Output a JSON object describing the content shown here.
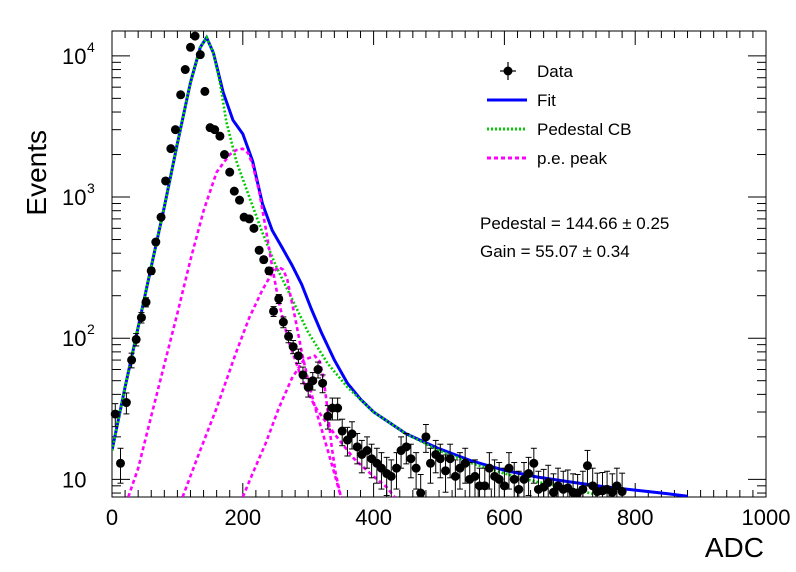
{
  "chart_data": {
    "type": "scatter",
    "xlabel": "ADC",
    "ylabel": "Events",
    "xlim": [
      0,
      1000
    ],
    "ylim": [
      7.5,
      15000
    ],
    "yscale": "log",
    "grid": false,
    "legend_placement": "top-right",
    "x_ticks": [
      "0",
      "200",
      "400",
      "600",
      "800",
      "1000"
    ],
    "y_ticks": [
      {
        "base": "10",
        "exp": "",
        "value": 10
      },
      {
        "base": "10",
        "exp": "2",
        "value": 100
      },
      {
        "base": "10",
        "exp": "3",
        "value": 1000
      },
      {
        "base": "10",
        "exp": "4",
        "value": 10000
      }
    ],
    "legend": [
      {
        "label": "Data",
        "style": "marker",
        "color": "#000000"
      },
      {
        "label": "Fit",
        "style": "solid",
        "color": "#0000ff"
      },
      {
        "label": "Pedestal CB",
        "style": "dotted",
        "color": "#00cc00"
      },
      {
        "label": "p.e. peak",
        "style": "dashed",
        "color": "#ff00ff"
      }
    ],
    "annotations": [
      "Pedestal = 144.66 ± 0.25",
      "Gain = 55.07 ± 0.34"
    ],
    "series": [
      {
        "name": "Data",
        "kind": "points",
        "color": "#000000",
        "points": [
          [
            5,
            29
          ],
          [
            13,
            13
          ],
          [
            22,
            35
          ],
          [
            30,
            70
          ],
          [
            37,
            98
          ],
          [
            45,
            140
          ],
          [
            52,
            180
          ],
          [
            60,
            300
          ],
          [
            67,
            480
          ],
          [
            75,
            720
          ],
          [
            82,
            1300
          ],
          [
            90,
            2200
          ],
          [
            97,
            3000
          ],
          [
            105,
            5300
          ],
          [
            112,
            8000
          ],
          [
            120,
            11500
          ],
          [
            127,
            13800
          ],
          [
            135,
            10200
          ],
          [
            142,
            5600
          ],
          [
            150,
            3100
          ],
          [
            157,
            3000
          ],
          [
            165,
            2700
          ],
          [
            172,
            2000
          ],
          [
            180,
            1500
          ],
          [
            187,
            1100
          ],
          [
            195,
            950
          ],
          [
            202,
            720
          ],
          [
            210,
            700
          ],
          [
            217,
            600
          ],
          [
            225,
            420
          ],
          [
            232,
            360
          ],
          [
            240,
            300
          ],
          [
            247,
            155
          ],
          [
            255,
            190
          ],
          [
            262,
            130
          ],
          [
            270,
            103
          ],
          [
            277,
            87
          ],
          [
            285,
            75
          ],
          [
            292,
            55
          ],
          [
            300,
            45
          ],
          [
            307,
            50
          ],
          [
            315,
            60
          ],
          [
            322,
            48
          ],
          [
            330,
            28
          ],
          [
            337,
            32
          ],
          [
            345,
            32
          ],
          [
            352,
            22
          ],
          [
            360,
            19
          ],
          [
            367,
            21
          ],
          [
            375,
            17
          ],
          [
            382,
            15
          ],
          [
            390,
            16
          ],
          [
            397,
            14
          ],
          [
            405,
            13
          ],
          [
            412,
            12
          ],
          [
            420,
            11
          ],
          [
            427,
            10.5
          ],
          [
            435,
            12
          ],
          [
            442,
            16
          ],
          [
            450,
            17
          ],
          [
            457,
            14
          ],
          [
            465,
            12
          ],
          [
            472,
            8
          ],
          [
            480,
            20
          ],
          [
            487,
            13
          ],
          [
            495,
            15
          ],
          [
            502,
            14
          ],
          [
            510,
            11.5
          ],
          [
            517,
            14
          ],
          [
            525,
            10.5
          ],
          [
            532,
            12
          ],
          [
            540,
            13
          ],
          [
            547,
            10
          ],
          [
            555,
            10.5
          ],
          [
            562,
            9
          ],
          [
            570,
            9
          ],
          [
            577,
            12
          ],
          [
            585,
            10.5
          ],
          [
            592,
            10
          ],
          [
            600,
            9
          ],
          [
            607,
            12
          ],
          [
            615,
            10
          ],
          [
            622,
            8.5
          ],
          [
            630,
            10
          ],
          [
            637,
            11
          ],
          [
            645,
            13
          ],
          [
            652,
            8.5
          ],
          [
            660,
            8.8
          ],
          [
            667,
            9.5
          ],
          [
            675,
            8.1
          ],
          [
            682,
            9
          ],
          [
            690,
            8.5
          ],
          [
            697,
            8.7
          ],
          [
            705,
            8.1
          ],
          [
            712,
            8
          ],
          [
            720,
            8.5
          ],
          [
            727,
            12.5
          ],
          [
            735,
            9
          ],
          [
            742,
            8.2
          ],
          [
            750,
            8.3
          ],
          [
            757,
            8.5
          ],
          [
            765,
            8.1
          ],
          [
            772,
            9
          ],
          [
            780,
            8.2
          ]
        ]
      },
      {
        "name": "Fit",
        "kind": "line",
        "style": "solid",
        "color": "#0000ff",
        "points": [
          [
            0,
            16
          ],
          [
            20,
            45
          ],
          [
            40,
            120
          ],
          [
            60,
            320
          ],
          [
            80,
            850
          ],
          [
            100,
            2400
          ],
          [
            120,
            6500
          ],
          [
            135,
            11500
          ],
          [
            144.66,
            13500
          ],
          [
            155,
            10500
          ],
          [
            170,
            5500
          ],
          [
            185,
            3500
          ],
          [
            200,
            2800
          ],
          [
            215,
            1800
          ],
          [
            230,
            900
          ],
          [
            245,
            580
          ],
          [
            260,
            440
          ],
          [
            275,
            330
          ],
          [
            290,
            240
          ],
          [
            305,
            160
          ],
          [
            320,
            110
          ],
          [
            340,
            70
          ],
          [
            360,
            48
          ],
          [
            380,
            37
          ],
          [
            400,
            30
          ],
          [
            450,
            21
          ],
          [
            500,
            16.5
          ],
          [
            550,
            13.5
          ],
          [
            600,
            11.6
          ],
          [
            650,
            10.4
          ],
          [
            700,
            9.6
          ],
          [
            750,
            8.9
          ],
          [
            800,
            8.4
          ],
          [
            850,
            7.9
          ],
          [
            880,
            7.6
          ]
        ]
      },
      {
        "name": "Pedestal CB",
        "kind": "line",
        "style": "dotted",
        "color": "#00cc00",
        "points": [
          [
            0,
            16
          ],
          [
            20,
            45
          ],
          [
            40,
            120
          ],
          [
            60,
            320
          ],
          [
            80,
            850
          ],
          [
            100,
            2400
          ],
          [
            120,
            6500
          ],
          [
            135,
            11500
          ],
          [
            144.66,
            13500
          ],
          [
            155,
            10500
          ],
          [
            165,
            6500
          ],
          [
            175,
            3400
          ],
          [
            190,
            1800
          ],
          [
            210,
            1000
          ],
          [
            230,
            560
          ],
          [
            250,
            330
          ],
          [
            275,
            190
          ],
          [
            300,
            110
          ],
          [
            330,
            66
          ],
          [
            360,
            45
          ],
          [
            400,
            30
          ],
          [
            450,
            21
          ],
          [
            500,
            16
          ],
          [
            550,
            13
          ],
          [
            600,
            11
          ],
          [
            650,
            9.6
          ],
          [
            700,
            8.6
          ],
          [
            720,
            8.2
          ],
          [
            740,
            7.8
          ]
        ]
      },
      {
        "name": "p.e. peak 1",
        "kind": "line",
        "style": "dashed",
        "color": "#ff00ff",
        "points": [
          [
            25,
            7.5
          ],
          [
            40,
            12
          ],
          [
            60,
            28
          ],
          [
            80,
            65
          ],
          [
            100,
            150
          ],
          [
            120,
            360
          ],
          [
            140,
            800
          ],
          [
            160,
            1500
          ],
          [
            180,
            2000
          ],
          [
            190,
            2150
          ],
          [
            199.7,
            2200
          ],
          [
            208,
            2050
          ],
          [
            215,
            1700
          ],
          [
            225,
            1100
          ],
          [
            235,
            600
          ],
          [
            245,
            320
          ],
          [
            255,
            180
          ],
          [
            270,
            95
          ],
          [
            290,
            52
          ],
          [
            310,
            33
          ],
          [
            340,
            21
          ],
          [
            370,
            14
          ],
          [
            400,
            10.5
          ],
          [
            420,
            8.8
          ],
          [
            432,
            7.5
          ]
        ]
      },
      {
        "name": "p.e. peak 2",
        "kind": "line",
        "style": "dashed",
        "color": "#ff00ff",
        "points": [
          [
            108,
            7.5
          ],
          [
            130,
            14
          ],
          [
            160,
            32
          ],
          [
            190,
            80
          ],
          [
            210,
            140
          ],
          [
            230,
            220
          ],
          [
            245,
            290
          ],
          [
            254.8,
            320
          ],
          [
            262,
            305
          ],
          [
            268,
            260
          ],
          [
            273,
            200
          ],
          [
            280,
            140
          ],
          [
            290,
            80
          ],
          [
            300,
            50
          ],
          [
            310,
            33
          ],
          [
            320,
            23
          ],
          [
            330,
            16
          ],
          [
            340,
            11
          ],
          [
            350,
            7.5
          ]
        ]
      },
      {
        "name": "p.e. peak 3",
        "kind": "line",
        "style": "dashed",
        "color": "#ff00ff",
        "points": [
          [
            200,
            7.5
          ],
          [
            215,
            11
          ],
          [
            235,
            18
          ],
          [
            255,
            32
          ],
          [
            275,
            52
          ],
          [
            293,
            70
          ],
          [
            309.9,
            75
          ],
          [
            318,
            68
          ],
          [
            324,
            50
          ],
          [
            330,
            30
          ],
          [
            336,
            17
          ],
          [
            342,
            11
          ],
          [
            350,
            7.5
          ]
        ]
      }
    ]
  }
}
